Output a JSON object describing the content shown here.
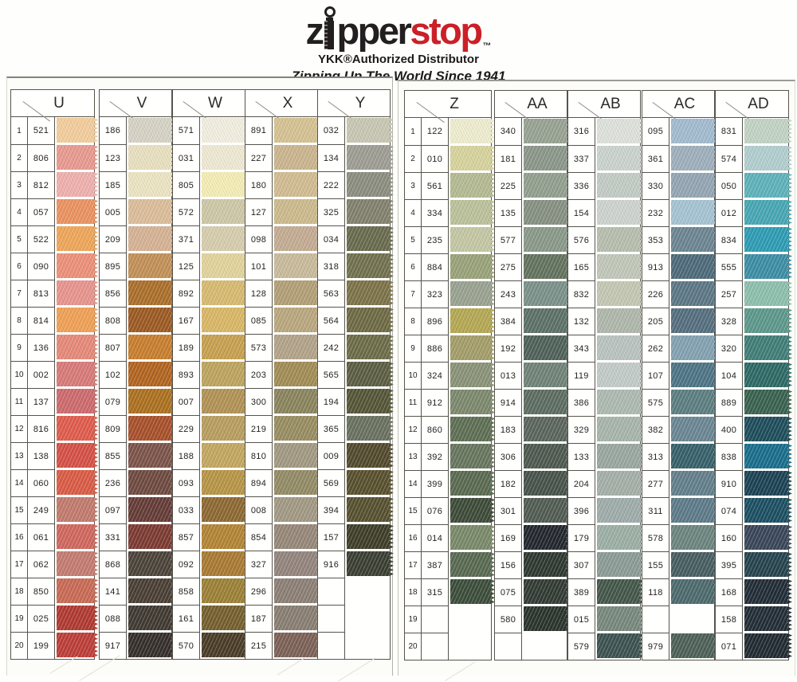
{
  "header": {
    "logo_z": "z",
    "logo_pper": "pper",
    "logo_stop": "stop",
    "logo_tm": "™",
    "line1": "YKK®Authorized Distributor",
    "line2": "Zipping Up The World Since 1941",
    "brand_black": "#231f20",
    "brand_red": "#cb2027"
  },
  "columns": [
    {
      "letter": "U",
      "show_numbers": true,
      "rows": [
        {
          "num": "1",
          "code": "521",
          "color": "#f3cd9c"
        },
        {
          "num": "2",
          "code": "806",
          "color": "#e89a8f"
        },
        {
          "num": "3",
          "code": "812",
          "color": "#efb0ad"
        },
        {
          "num": "4",
          "code": "057",
          "color": "#eb9260"
        },
        {
          "num": "5",
          "code": "522",
          "color": "#efa658"
        },
        {
          "num": "6",
          "code": "090",
          "color": "#ed9078"
        },
        {
          "num": "7",
          "code": "813",
          "color": "#e7948c"
        },
        {
          "num": "8",
          "code": "814",
          "color": "#f0a055"
        },
        {
          "num": "9",
          "code": "136",
          "color": "#e68979"
        },
        {
          "num": "10",
          "code": "002",
          "color": "#d87a78"
        },
        {
          "num": "11",
          "code": "137",
          "color": "#cd6a6d"
        },
        {
          "num": "12",
          "code": "816",
          "color": "#e05b4c"
        },
        {
          "num": "13",
          "code": "138",
          "color": "#d55046"
        },
        {
          "num": "14",
          "code": "060",
          "color": "#da5b45"
        },
        {
          "num": "15",
          "code": "249",
          "color": "#c27a6d"
        },
        {
          "num": "16",
          "code": "061",
          "color": "#d0675e"
        },
        {
          "num": "17",
          "code": "062",
          "color": "#c47b70"
        },
        {
          "num": "18",
          "code": "850",
          "color": "#c96a55"
        },
        {
          "num": "19",
          "code": "025",
          "color": "#b03a31"
        },
        {
          "num": "20",
          "code": "199",
          "color": "#bd3e38"
        }
      ]
    },
    {
      "letter": "V",
      "show_numbers": false,
      "rows": [
        {
          "code": "186",
          "color": "#d6d3c5"
        },
        {
          "code": "123",
          "color": "#e8e0bf"
        },
        {
          "code": "185",
          "color": "#ece4c2"
        },
        {
          "code": "005",
          "color": "#dcbd9a"
        },
        {
          "code": "209",
          "color": "#d6b294"
        },
        {
          "code": "895",
          "color": "#c29057"
        },
        {
          "code": "856",
          "color": "#ab6f2b"
        },
        {
          "code": "808",
          "color": "#9c5a22"
        },
        {
          "code": "807",
          "color": "#c87e2d"
        },
        {
          "code": "102",
          "color": "#b2641f"
        },
        {
          "code": "079",
          "color": "#ac701f"
        },
        {
          "code": "809",
          "color": "#a8502b"
        },
        {
          "code": "855",
          "color": "#7c544a"
        },
        {
          "code": "236",
          "color": "#6f4a40"
        },
        {
          "code": "097",
          "color": "#653c37"
        },
        {
          "code": "331",
          "color": "#7c3b33"
        },
        {
          "code": "868",
          "color": "#4c443a"
        },
        {
          "code": "141",
          "color": "#4a3f34"
        },
        {
          "code": "088",
          "color": "#403a32"
        },
        {
          "code": "917",
          "color": "#362f2b"
        }
      ]
    },
    {
      "letter": "W",
      "show_numbers": false,
      "rows": [
        {
          "code": "571",
          "color": "#f2efe0"
        },
        {
          "code": "031",
          "color": "#efe9d3"
        },
        {
          "code": "805",
          "color": "#f4edb5"
        },
        {
          "code": "572",
          "color": "#cdc8a6"
        },
        {
          "code": "371",
          "color": "#d6cdad"
        },
        {
          "code": "125",
          "color": "#e2d39b"
        },
        {
          "code": "892",
          "color": "#d7ba70"
        },
        {
          "code": "167",
          "color": "#d9b765"
        },
        {
          "code": "189",
          "color": "#c7a04f"
        },
        {
          "code": "893",
          "color": "#bda45e"
        },
        {
          "code": "007",
          "color": "#b19254"
        },
        {
          "code": "229",
          "color": "#b89e5e"
        },
        {
          "code": "188",
          "color": "#c3a75f"
        },
        {
          "code": "093",
          "color": "#b79546"
        },
        {
          "code": "033",
          "color": "#8d6932"
        },
        {
          "code": "857",
          "color": "#b28434"
        },
        {
          "code": "092",
          "color": "#a97a33"
        },
        {
          "code": "858",
          "color": "#9c8036"
        },
        {
          "code": "161",
          "color": "#755f2e"
        },
        {
          "code": "570",
          "color": "#4a3d27"
        }
      ]
    },
    {
      "letter": "X",
      "show_numbers": false,
      "rows": [
        {
          "code": "891",
          "color": "#d5c292"
        },
        {
          "code": "227",
          "color": "#cab58e"
        },
        {
          "code": "180",
          "color": "#d1bc91"
        },
        {
          "code": "127",
          "color": "#ccba8d"
        },
        {
          "code": "098",
          "color": "#c3ac92"
        },
        {
          "code": "101",
          "color": "#c8bb9b"
        },
        {
          "code": "128",
          "color": "#b29f76"
        },
        {
          "code": "085",
          "color": "#b9a77e"
        },
        {
          "code": "573",
          "color": "#b2a389"
        },
        {
          "code": "203",
          "color": "#a18c55"
        },
        {
          "code": "300",
          "color": "#8a845d"
        },
        {
          "code": "219",
          "color": "#988d61"
        },
        {
          "code": "810",
          "color": "#a19981"
        },
        {
          "code": "894",
          "color": "#938b65"
        },
        {
          "code": "008",
          "color": "#a29983"
        },
        {
          "code": "854",
          "color": "#968878"
        },
        {
          "code": "327",
          "color": "#93847d"
        },
        {
          "code": "296",
          "color": "#8c7f75"
        },
        {
          "code": "187",
          "color": "#897e71"
        },
        {
          "code": "215",
          "color": "#7c6156"
        }
      ]
    },
    {
      "letter": "Y",
      "show_numbers": false,
      "rows": [
        {
          "code": "032",
          "color": "#c8c7b3"
        },
        {
          "code": "134",
          "color": "#9d9d93"
        },
        {
          "code": "222",
          "color": "#8b8e7f"
        },
        {
          "code": "325",
          "color": "#82816d"
        },
        {
          "code": "034",
          "color": "#696b4e"
        },
        {
          "code": "318",
          "color": "#72714e"
        },
        {
          "code": "563",
          "color": "#7c7349"
        },
        {
          "code": "564",
          "color": "#6e6a44"
        },
        {
          "code": "242",
          "color": "#6d6c48"
        },
        {
          "code": "565",
          "color": "#5c5e42"
        },
        {
          "code": "194",
          "color": "#555637"
        },
        {
          "code": "365",
          "color": "#6a7160"
        },
        {
          "code": "009",
          "color": "#534a2d"
        },
        {
          "code": "569",
          "color": "#59502e"
        },
        {
          "code": "394",
          "color": "#575130"
        },
        {
          "code": "157",
          "color": "#3e3e29"
        },
        {
          "code": "916",
          "color": "#3b3f33"
        },
        {
          "code": "",
          "color": ""
        },
        {
          "code": "",
          "color": ""
        },
        {
          "code": "",
          "color": ""
        }
      ]
    },
    {
      "letter": "Z",
      "show_numbers": true,
      "rows": [
        {
          "num": "1",
          "code": "122",
          "color": "#efedcf"
        },
        {
          "num": "2",
          "code": "010",
          "color": "#d7d39d"
        },
        {
          "num": "3",
          "code": "561",
          "color": "#b4ba91"
        },
        {
          "num": "4",
          "code": "334",
          "color": "#bbc19a"
        },
        {
          "num": "5",
          "code": "235",
          "color": "#c4c7a3"
        },
        {
          "num": "6",
          "code": "884",
          "color": "#99a278"
        },
        {
          "num": "7",
          "code": "323",
          "color": "#99a290"
        },
        {
          "num": "8",
          "code": "896",
          "color": "#b4a853"
        },
        {
          "num": "9",
          "code": "886",
          "color": "#a39d69"
        },
        {
          "num": "10",
          "code": "324",
          "color": "#8a9277"
        },
        {
          "num": "11",
          "code": "912",
          "color": "#7c896c"
        },
        {
          "num": "12",
          "code": "860",
          "color": "#5e6f54"
        },
        {
          "num": "13",
          "code": "392",
          "color": "#67765e"
        },
        {
          "num": "14",
          "code": "399",
          "color": "#5a6a51"
        },
        {
          "num": "15",
          "code": "076",
          "color": "#3d4b38"
        },
        {
          "num": "16",
          "code": "014",
          "color": "#798969"
        },
        {
          "num": "17",
          "code": "387",
          "color": "#586a51"
        },
        {
          "num": "18",
          "code": "315",
          "color": "#3c4e3b"
        },
        {
          "num": "19",
          "code": "",
          "color": ""
        },
        {
          "num": "20",
          "code": "",
          "color": ""
        }
      ]
    },
    {
      "letter": "AA",
      "show_numbers": false,
      "rows": [
        {
          "code": "340",
          "color": "#98a293"
        },
        {
          "code": "181",
          "color": "#8b978a"
        },
        {
          "code": "225",
          "color": "#929f8f"
        },
        {
          "code": "135",
          "color": "#869082"
        },
        {
          "code": "577",
          "color": "#899989"
        },
        {
          "code": "275",
          "color": "#63735e"
        },
        {
          "code": "243",
          "color": "#7a9189"
        },
        {
          "code": "384",
          "color": "#5c7167"
        },
        {
          "code": "192",
          "color": "#4f6259"
        },
        {
          "code": "013",
          "color": "#708377"
        },
        {
          "code": "914",
          "color": "#5d6d61"
        },
        {
          "code": "183",
          "color": "#5b655d"
        },
        {
          "code": "306",
          "color": "#4e594f"
        },
        {
          "code": "182",
          "color": "#47534b"
        },
        {
          "code": "301",
          "color": "#515c53"
        },
        {
          "code": "169",
          "color": "#23282e"
        },
        {
          "code": "156",
          "color": "#2e3931"
        },
        {
          "code": "075",
          "color": "#323b34"
        },
        {
          "code": "580",
          "color": "#2b342d"
        },
        {
          "code": "",
          "color": ""
        }
      ]
    },
    {
      "letter": "AB",
      "show_numbers": false,
      "rows": [
        {
          "code": "316",
          "color": "#dee2db"
        },
        {
          "code": "337",
          "color": "#cbd3ce"
        },
        {
          "code": "336",
          "color": "#c3cbc5"
        },
        {
          "code": "154",
          "color": "#cdd3ce"
        },
        {
          "code": "576",
          "color": "#b7bead"
        },
        {
          "code": "165",
          "color": "#c1c7b9"
        },
        {
          "code": "832",
          "color": "#c4c7b3"
        },
        {
          "code": "132",
          "color": "#afb7ab"
        },
        {
          "code": "343",
          "color": "#b9c3bf"
        },
        {
          "code": "119",
          "color": "#c2cbc8"
        },
        {
          "code": "386",
          "color": "#acbab0"
        },
        {
          "code": "329",
          "color": "#a7b5ab"
        },
        {
          "code": "133",
          "color": "#99a79f"
        },
        {
          "code": "204",
          "color": "#a4afa7"
        },
        {
          "code": "396",
          "color": "#9eacaa"
        },
        {
          "code": "179",
          "color": "#9bafa5"
        },
        {
          "code": "307",
          "color": "#8b9b95"
        },
        {
          "code": "389",
          "color": "#44574a"
        },
        {
          "code": "015",
          "color": "#77887c"
        },
        {
          "code": "579",
          "color": "#3c5351"
        }
      ]
    },
    {
      "letter": "AC",
      "show_numbers": false,
      "rows": [
        {
          "code": "095",
          "color": "#a2bbcf"
        },
        {
          "code": "361",
          "color": "#9eafbc"
        },
        {
          "code": "330",
          "color": "#93a6b3"
        },
        {
          "code": "232",
          "color": "#a5c3d3"
        },
        {
          "code": "353",
          "color": "#6c8592"
        },
        {
          "code": "913",
          "color": "#4d6a7b"
        },
        {
          "code": "226",
          "color": "#5c7785"
        },
        {
          "code": "205",
          "color": "#556f7f"
        },
        {
          "code": "262",
          "color": "#83a1b1"
        },
        {
          "code": "107",
          "color": "#4e7485"
        },
        {
          "code": "575",
          "color": "#5c7e81"
        },
        {
          "code": "382",
          "color": "#6b8693"
        },
        {
          "code": "313",
          "color": "#37616b"
        },
        {
          "code": "277",
          "color": "#637f8b"
        },
        {
          "code": "311",
          "color": "#5d7b89"
        },
        {
          "code": "578",
          "color": "#6c847f"
        },
        {
          "code": "155",
          "color": "#475e61"
        },
        {
          "code": "118",
          "color": "#4d6a6d"
        },
        {
          "code": "",
          "color": ""
        },
        {
          "code": "979",
          "color": "#4d6157"
        }
      ]
    },
    {
      "letter": "AD",
      "show_numbers": false,
      "rows": [
        {
          "code": "831",
          "color": "#c2d3c5"
        },
        {
          "code": "574",
          "color": "#b1cecf"
        },
        {
          "code": "050",
          "color": "#5eb2ba"
        },
        {
          "code": "012",
          "color": "#46a7b4"
        },
        {
          "code": "834",
          "color": "#2d9cb4"
        },
        {
          "code": "555",
          "color": "#3c8ea5"
        },
        {
          "code": "257",
          "color": "#8dbfad"
        },
        {
          "code": "328",
          "color": "#5c988b"
        },
        {
          "code": "320",
          "color": "#407e77"
        },
        {
          "code": "104",
          "color": "#2d6a65"
        },
        {
          "code": "889",
          "color": "#396250"
        },
        {
          "code": "400",
          "color": "#1e4e5b"
        },
        {
          "code": "838",
          "color": "#196e8c"
        },
        {
          "code": "910",
          "color": "#1c4354"
        },
        {
          "code": "074",
          "color": "#1c5063"
        },
        {
          "code": "160",
          "color": "#394759"
        },
        {
          "code": "395",
          "color": "#26444e"
        },
        {
          "code": "168",
          "color": "#222d37"
        },
        {
          "code": "158",
          "color": "#232e37"
        },
        {
          "code": "071",
          "color": "#212b32"
        }
      ]
    }
  ]
}
